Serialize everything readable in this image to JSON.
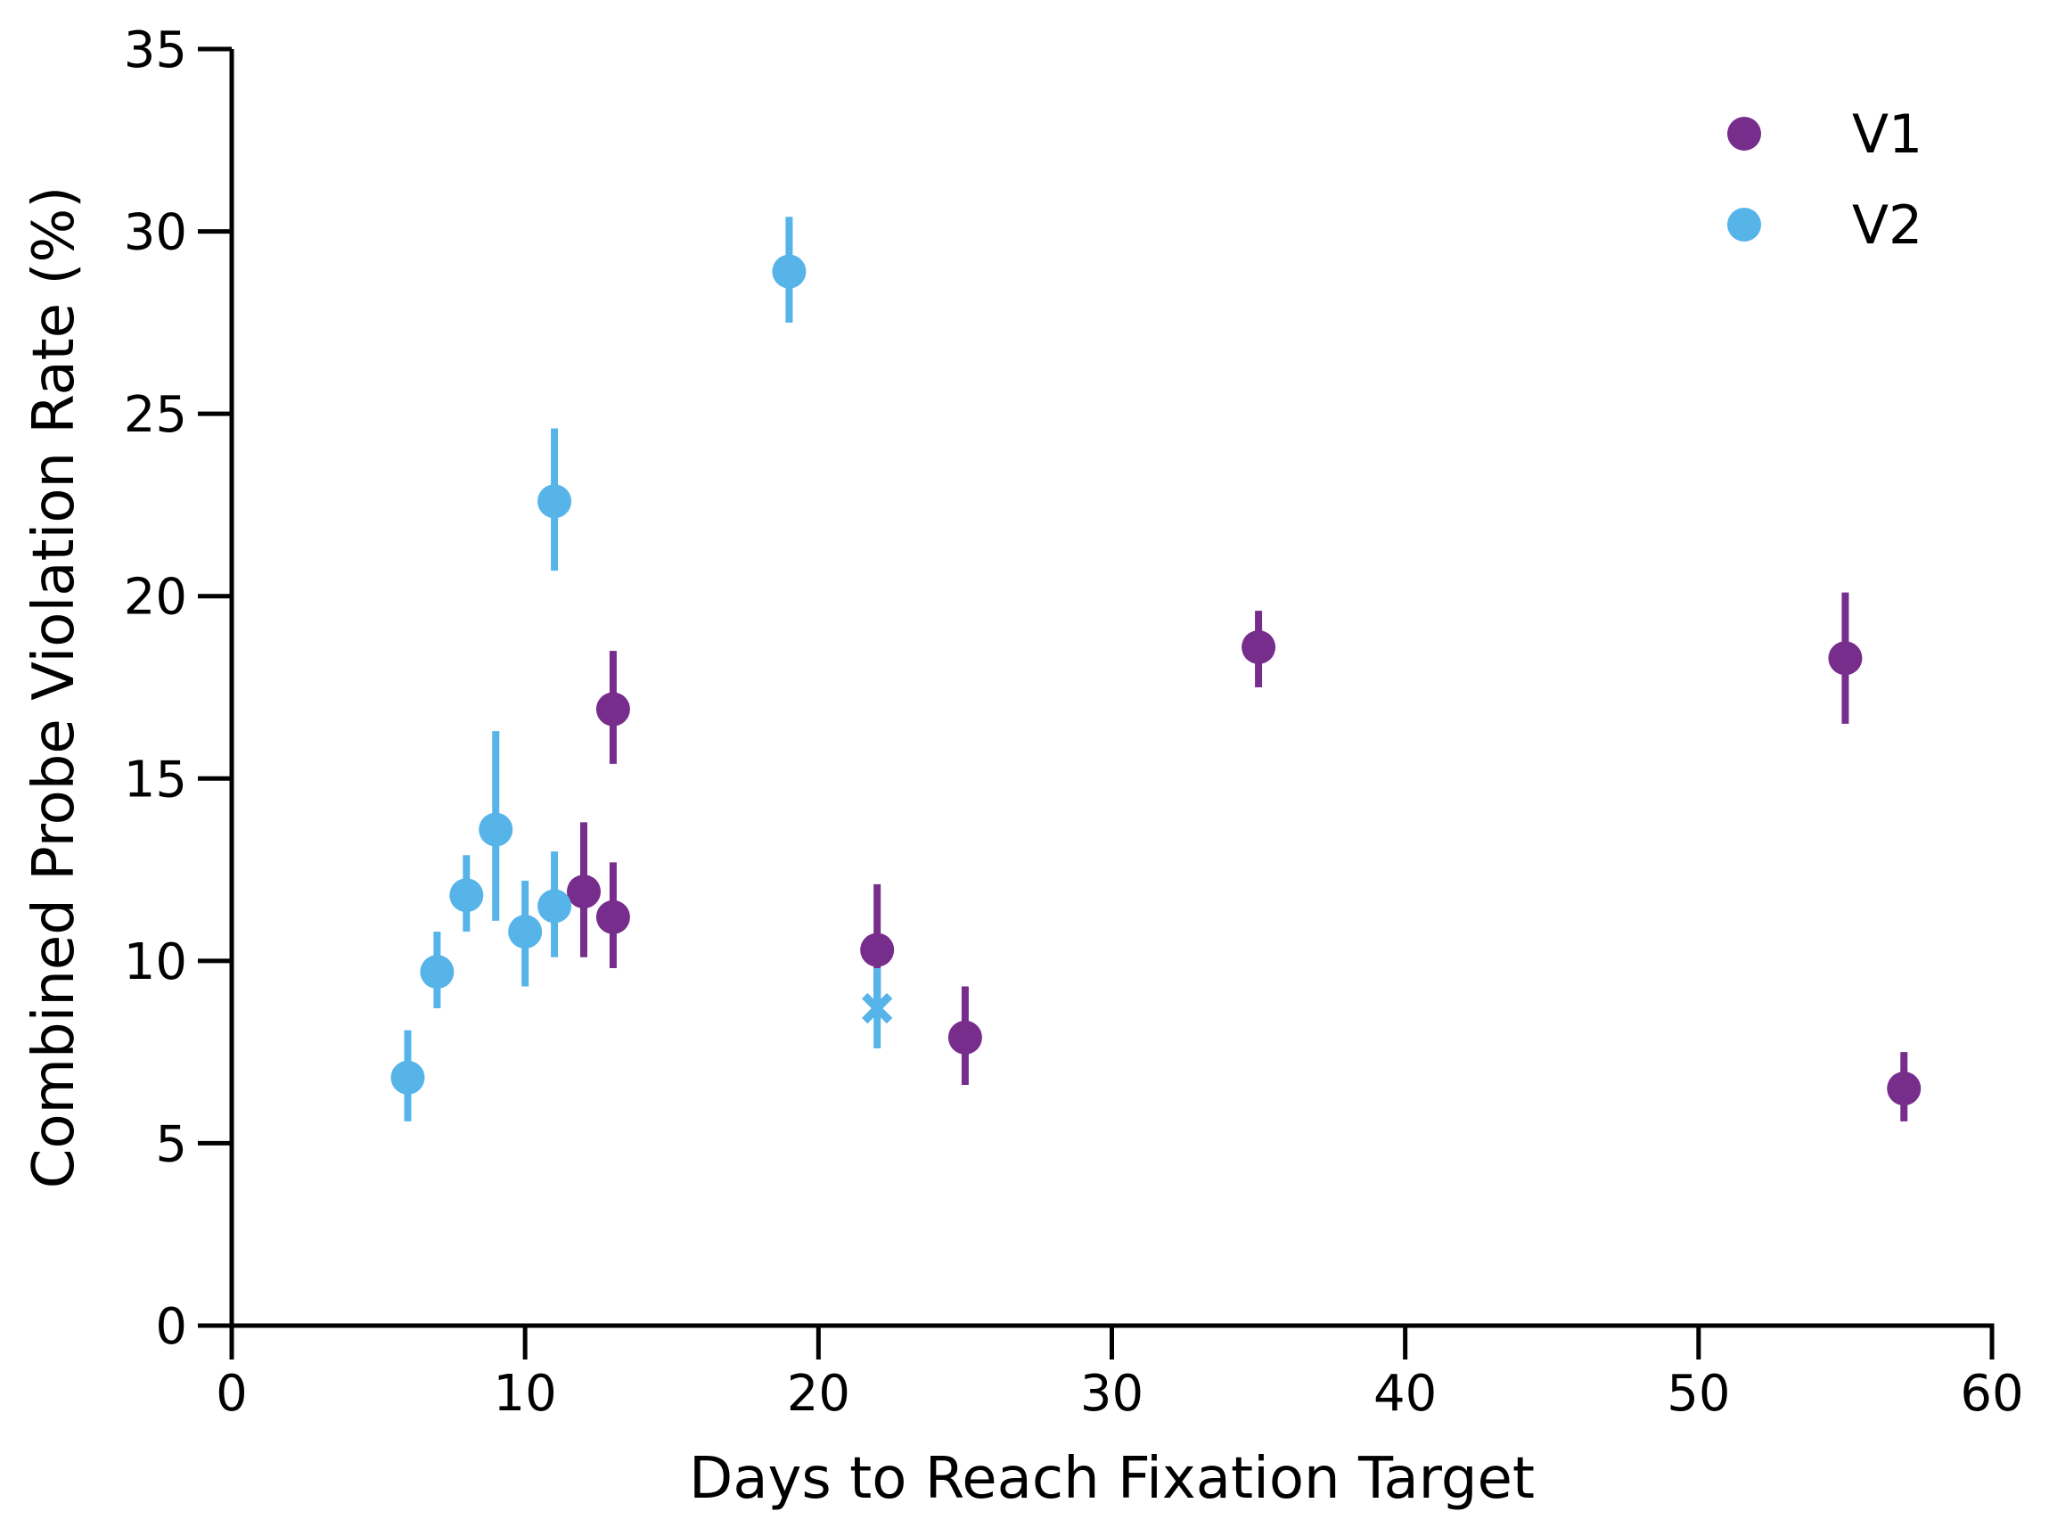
{
  "chart_data": {
    "type": "scatter",
    "xlabel": "Days to Reach Fixation Target",
    "ylabel": "Combined Probe Violation Rate (%)",
    "xlim": [
      0,
      60
    ],
    "ylim": [
      0,
      35
    ],
    "xticks": [
      "0",
      "10",
      "20",
      "30",
      "40",
      "50",
      "60"
    ],
    "yticks": [
      "0",
      "5",
      "10",
      "15",
      "20",
      "25",
      "30",
      "35"
    ],
    "grid": false,
    "legend_position": "top-right",
    "series": [
      {
        "name": "V1",
        "color": "#772D8B",
        "marker": "circle",
        "points": [
          {
            "x": 12,
            "y": 11.9,
            "ylow": 10.1,
            "yhigh": 13.8
          },
          {
            "x": 13,
            "y": 11.2,
            "ylow": 9.8,
            "yhigh": 12.7
          },
          {
            "x": 13,
            "y": 16.9,
            "ylow": 15.4,
            "yhigh": 18.5
          },
          {
            "x": 22,
            "y": 10.3,
            "ylow": 8.6,
            "yhigh": 12.1
          },
          {
            "x": 25,
            "y": 7.9,
            "ylow": 6.6,
            "yhigh": 9.3
          },
          {
            "x": 35,
            "y": 18.6,
            "ylow": 17.5,
            "yhigh": 19.6
          },
          {
            "x": 55,
            "y": 18.3,
            "ylow": 16.5,
            "yhigh": 20.1
          },
          {
            "x": 57,
            "y": 6.5,
            "ylow": 5.6,
            "yhigh": 7.5
          }
        ]
      },
      {
        "name": "V2",
        "color": "#56B4E9",
        "marker": "circle",
        "points": [
          {
            "x": 6,
            "y": 6.8,
            "ylow": 5.6,
            "yhigh": 8.1
          },
          {
            "x": 7,
            "y": 9.7,
            "ylow": 8.7,
            "yhigh": 10.8
          },
          {
            "x": 8,
            "y": 11.8,
            "ylow": 10.8,
            "yhigh": 12.9
          },
          {
            "x": 9,
            "y": 13.6,
            "ylow": 11.1,
            "yhigh": 16.3
          },
          {
            "x": 10,
            "y": 10.8,
            "ylow": 9.3,
            "yhigh": 12.2
          },
          {
            "x": 11,
            "y": 11.5,
            "ylow": 10.1,
            "yhigh": 13.0
          },
          {
            "x": 11,
            "y": 22.6,
            "ylow": 20.7,
            "yhigh": 24.6
          },
          {
            "x": 19,
            "y": 28.9,
            "ylow": 27.5,
            "yhigh": 30.4
          },
          {
            "x": 22,
            "y": 8.7,
            "ylow": 7.6,
            "yhigh": 9.8,
            "marker": "x"
          }
        ]
      }
    ]
  }
}
